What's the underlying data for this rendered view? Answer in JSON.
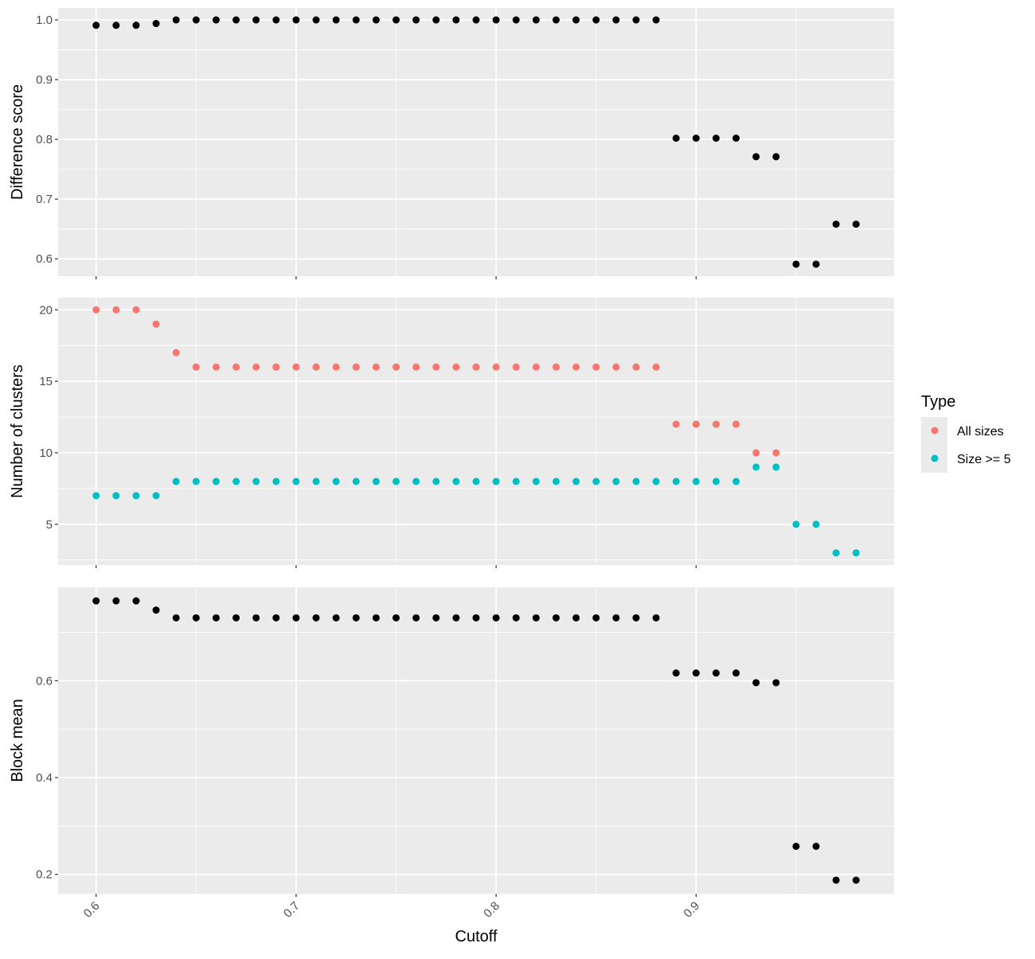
{
  "chart_data": {
    "type": "scatter",
    "xlabel": "Cutoff",
    "x_ticks": [
      0.6,
      0.7,
      0.8,
      0.9
    ],
    "x_tick_labels": [
      "0.6",
      "0.7",
      "0.8",
      "0.9"
    ],
    "xlim": [
      0.581,
      0.999
    ],
    "x": [
      0.6,
      0.61,
      0.62,
      0.63,
      0.64,
      0.65,
      0.66,
      0.67,
      0.68,
      0.69,
      0.7,
      0.71,
      0.72,
      0.73,
      0.74,
      0.75,
      0.76,
      0.77,
      0.78,
      0.79,
      0.8,
      0.81,
      0.82,
      0.83,
      0.84,
      0.85,
      0.86,
      0.87,
      0.88,
      0.89,
      0.9,
      0.91,
      0.92,
      0.93,
      0.94,
      0.95,
      0.96,
      0.97,
      0.98
    ],
    "grid": true,
    "panels": [
      {
        "ylabel": "Difference score",
        "ylim": [
          0.571,
          1.02
        ],
        "y_ticks": [
          0.6,
          0.7,
          0.8,
          0.9,
          1.0
        ],
        "y_tick_labels": [
          "0.6",
          "0.7",
          "0.8",
          "0.9",
          "1.0"
        ],
        "series": [
          {
            "color": "#000000",
            "values": [
              0.991,
              0.991,
              0.991,
              0.994,
              1.0,
              1.0,
              1.0,
              1.0,
              1.0,
              1.0,
              1.0,
              1.0,
              1.0,
              1.0,
              1.0,
              1.0,
              1.0,
              1.0,
              1.0,
              1.0,
              1.0,
              1.0,
              1.0,
              1.0,
              1.0,
              1.0,
              1.0,
              1.0,
              1.0,
              0.802,
              0.802,
              0.802,
              0.802,
              0.771,
              0.771,
              0.591,
              0.591,
              0.658,
              0.658
            ]
          }
        ]
      },
      {
        "ylabel": "Number of clusters",
        "ylim": [
          2.15,
          20.85
        ],
        "y_ticks": [
          5,
          10,
          15,
          20
        ],
        "y_tick_labels": [
          "5",
          "10",
          "15",
          "20"
        ],
        "series": [
          {
            "name": "All sizes",
            "color": "#F8766D",
            "values": [
              20,
              20,
              20,
              19,
              17,
              16,
              16,
              16,
              16,
              16,
              16,
              16,
              16,
              16,
              16,
              16,
              16,
              16,
              16,
              16,
              16,
              16,
              16,
              16,
              16,
              16,
              16,
              16,
              16,
              12,
              12,
              12,
              12,
              10,
              10,
              null,
              null,
              null,
              null
            ]
          },
          {
            "name": "Size >= 5",
            "color": "#00BFC4",
            "values": [
              7,
              7,
              7,
              7,
              8,
              8,
              8,
              8,
              8,
              8,
              8,
              8,
              8,
              8,
              8,
              8,
              8,
              8,
              8,
              8,
              8,
              8,
              8,
              8,
              8,
              8,
              8,
              8,
              8,
              8,
              8,
              8,
              8,
              9,
              9,
              5,
              5,
              3,
              3
            ]
          }
        ]
      },
      {
        "ylabel": "Block mean",
        "ylim": [
          0.16,
          0.793
        ],
        "y_ticks": [
          0.2,
          0.4,
          0.6
        ],
        "y_tick_labels": [
          "0.2",
          "0.4",
          "0.6"
        ],
        "series": [
          {
            "color": "#000000",
            "values": [
              0.765,
              0.765,
              0.765,
              0.746,
              0.73,
              0.73,
              0.73,
              0.73,
              0.73,
              0.73,
              0.73,
              0.73,
              0.73,
              0.73,
              0.73,
              0.73,
              0.73,
              0.73,
              0.73,
              0.73,
              0.73,
              0.73,
              0.73,
              0.73,
              0.73,
              0.73,
              0.73,
              0.73,
              0.73,
              0.616,
              0.616,
              0.616,
              0.616,
              0.596,
              0.596,
              0.258,
              0.258,
              0.188,
              0.188
            ]
          }
        ]
      }
    ],
    "legend": {
      "title": "Type",
      "placement": "right",
      "entries": [
        {
          "label": "All sizes",
          "color": "#F8766D"
        },
        {
          "label": "Size >= 5",
          "color": "#00BFC4"
        }
      ]
    }
  }
}
